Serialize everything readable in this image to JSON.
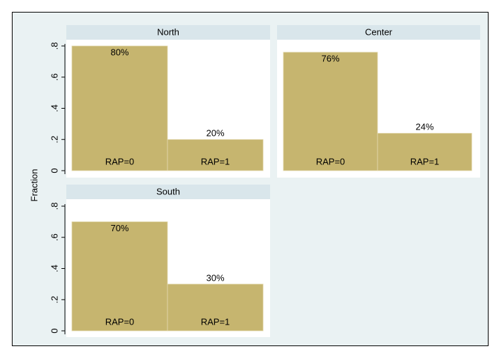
{
  "chart_data": [
    {
      "type": "bar",
      "title": "North",
      "y_label": "Fraction",
      "categories": [
        "RAP=0",
        "RAP=1"
      ],
      "values": [
        0.8,
        0.2
      ],
      "value_labels": [
        "80%",
        "20%"
      ],
      "color": "#c6b56f",
      "ylim": [
        0,
        0.8
      ],
      "yticks": [
        {
          "value": 0,
          "label": "0"
        },
        {
          "value": 0.2,
          "label": ".2"
        },
        {
          "value": 0.4,
          "label": ".4"
        },
        {
          "value": 0.6,
          "label": ".6"
        },
        {
          "value": 0.8,
          "label": ".8"
        }
      ]
    },
    {
      "type": "bar",
      "title": "Center",
      "categories": [
        "RAP=0",
        "RAP=1"
      ],
      "values": [
        0.76,
        0.24
      ],
      "value_labels": [
        "76%",
        "24%"
      ],
      "color": "#c6b56f",
      "ylim": [
        0,
        0.8
      ],
      "yticks": []
    },
    {
      "type": "bar",
      "title": "South",
      "categories": [
        "RAP=0",
        "RAP=1"
      ],
      "values": [
        0.7,
        0.3
      ],
      "value_labels": [
        "70%",
        "30%"
      ],
      "color": "#c6b56f",
      "ylim": [
        0,
        0.8
      ],
      "yticks": [
        {
          "value": 0,
          "label": "0"
        },
        {
          "value": 0.2,
          "label": ".2"
        },
        {
          "value": 0.4,
          "label": ".4"
        },
        {
          "value": 0.6,
          "label": ".6"
        },
        {
          "value": 0.8,
          "label": ".8"
        }
      ]
    }
  ]
}
